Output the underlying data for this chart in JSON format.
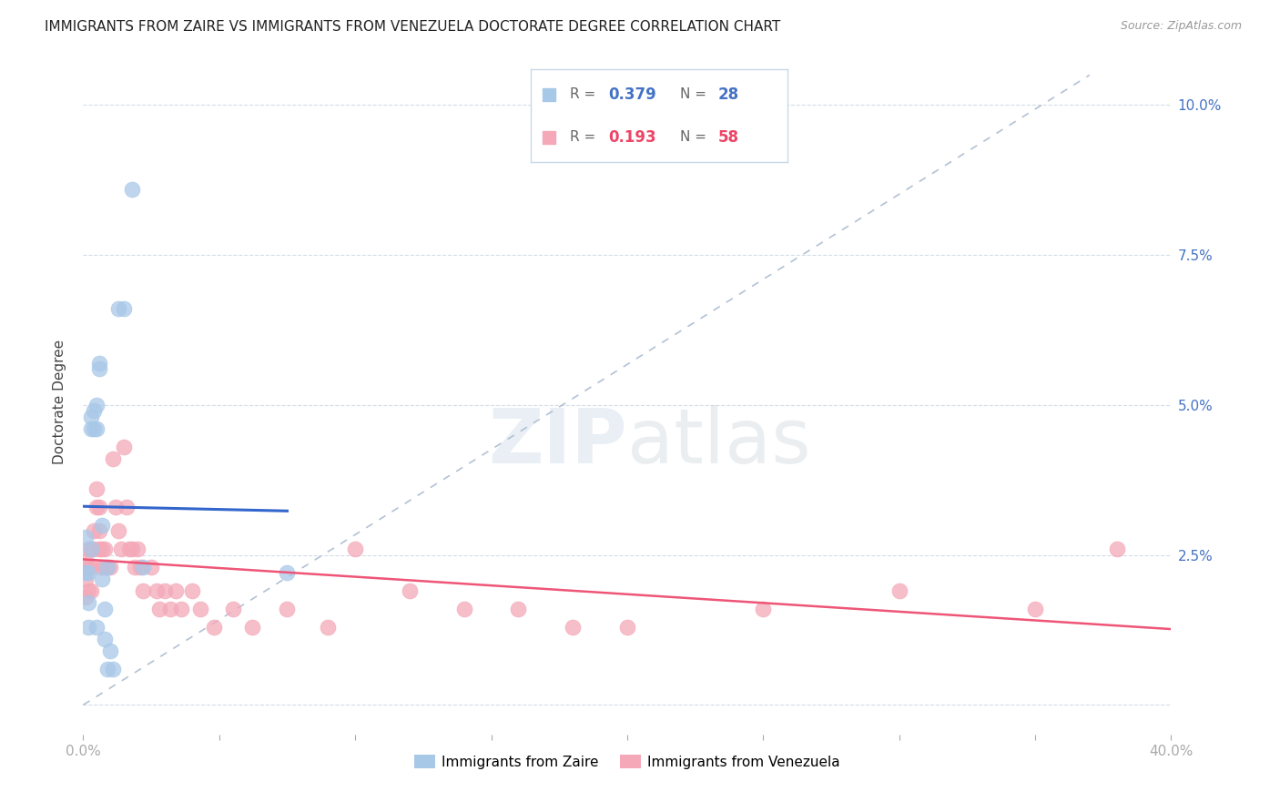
{
  "title": "IMMIGRANTS FROM ZAIRE VS IMMIGRANTS FROM VENEZUELA DOCTORATE DEGREE CORRELATION CHART",
  "source": "Source: ZipAtlas.com",
  "ylabel": "Doctorate Degree",
  "xlim": [
    0.0,
    0.4
  ],
  "ylim": [
    -0.005,
    0.106
  ],
  "yticks": [
    0.0,
    0.025,
    0.05,
    0.075,
    0.1
  ],
  "xticks": [
    0.0,
    0.05,
    0.1,
    0.15,
    0.2,
    0.25,
    0.3,
    0.35,
    0.4
  ],
  "zaire_color": "#a8c8e8",
  "venezuela_color": "#f4a8b8",
  "zaire_line_color": "#3366cc",
  "venezuela_line_color": "#ee5577",
  "dashed_line_color": "#aabbd0",
  "R_zaire": 0.379,
  "N_zaire": 28,
  "R_venezuela": 0.193,
  "N_venezuela": 58,
  "legend_label_zaire": "Immigrants from Zaire",
  "legend_label_venezuela": "Immigrants from Venezuela",
  "background_color": "#ffffff",
  "zaire_x": [
    0.001,
    0.001,
    0.002,
    0.002,
    0.002,
    0.003,
    0.003,
    0.003,
    0.004,
    0.004,
    0.005,
    0.005,
    0.005,
    0.006,
    0.006,
    0.007,
    0.007,
    0.008,
    0.008,
    0.009,
    0.009,
    0.01,
    0.011,
    0.013,
    0.015,
    0.018,
    0.022,
    0.075
  ],
  "zaire_y": [
    0.028,
    0.022,
    0.022,
    0.017,
    0.013,
    0.048,
    0.046,
    0.026,
    0.049,
    0.046,
    0.05,
    0.046,
    0.013,
    0.057,
    0.056,
    0.03,
    0.021,
    0.016,
    0.011,
    0.006,
    0.023,
    0.009,
    0.006,
    0.066,
    0.066,
    0.086,
    0.023,
    0.022
  ],
  "venezuela_x": [
    0.001,
    0.001,
    0.001,
    0.002,
    0.002,
    0.002,
    0.003,
    0.003,
    0.003,
    0.004,
    0.004,
    0.005,
    0.005,
    0.006,
    0.006,
    0.006,
    0.007,
    0.007,
    0.008,
    0.008,
    0.009,
    0.01,
    0.011,
    0.012,
    0.013,
    0.014,
    0.015,
    0.016,
    0.017,
    0.018,
    0.019,
    0.02,
    0.021,
    0.022,
    0.025,
    0.027,
    0.028,
    0.03,
    0.032,
    0.034,
    0.036,
    0.04,
    0.043,
    0.048,
    0.055,
    0.062,
    0.075,
    0.09,
    0.1,
    0.12,
    0.14,
    0.16,
    0.18,
    0.2,
    0.25,
    0.3,
    0.35,
    0.38
  ],
  "venezuela_y": [
    0.024,
    0.021,
    0.018,
    0.026,
    0.023,
    0.019,
    0.026,
    0.023,
    0.019,
    0.029,
    0.026,
    0.036,
    0.033,
    0.033,
    0.029,
    0.026,
    0.026,
    0.023,
    0.026,
    0.023,
    0.023,
    0.023,
    0.041,
    0.033,
    0.029,
    0.026,
    0.043,
    0.033,
    0.026,
    0.026,
    0.023,
    0.026,
    0.023,
    0.019,
    0.023,
    0.019,
    0.016,
    0.019,
    0.016,
    0.019,
    0.016,
    0.019,
    0.016,
    0.013,
    0.016,
    0.013,
    0.016,
    0.013,
    0.026,
    0.019,
    0.016,
    0.016,
    0.013,
    0.013,
    0.016,
    0.019,
    0.016,
    0.026
  ]
}
